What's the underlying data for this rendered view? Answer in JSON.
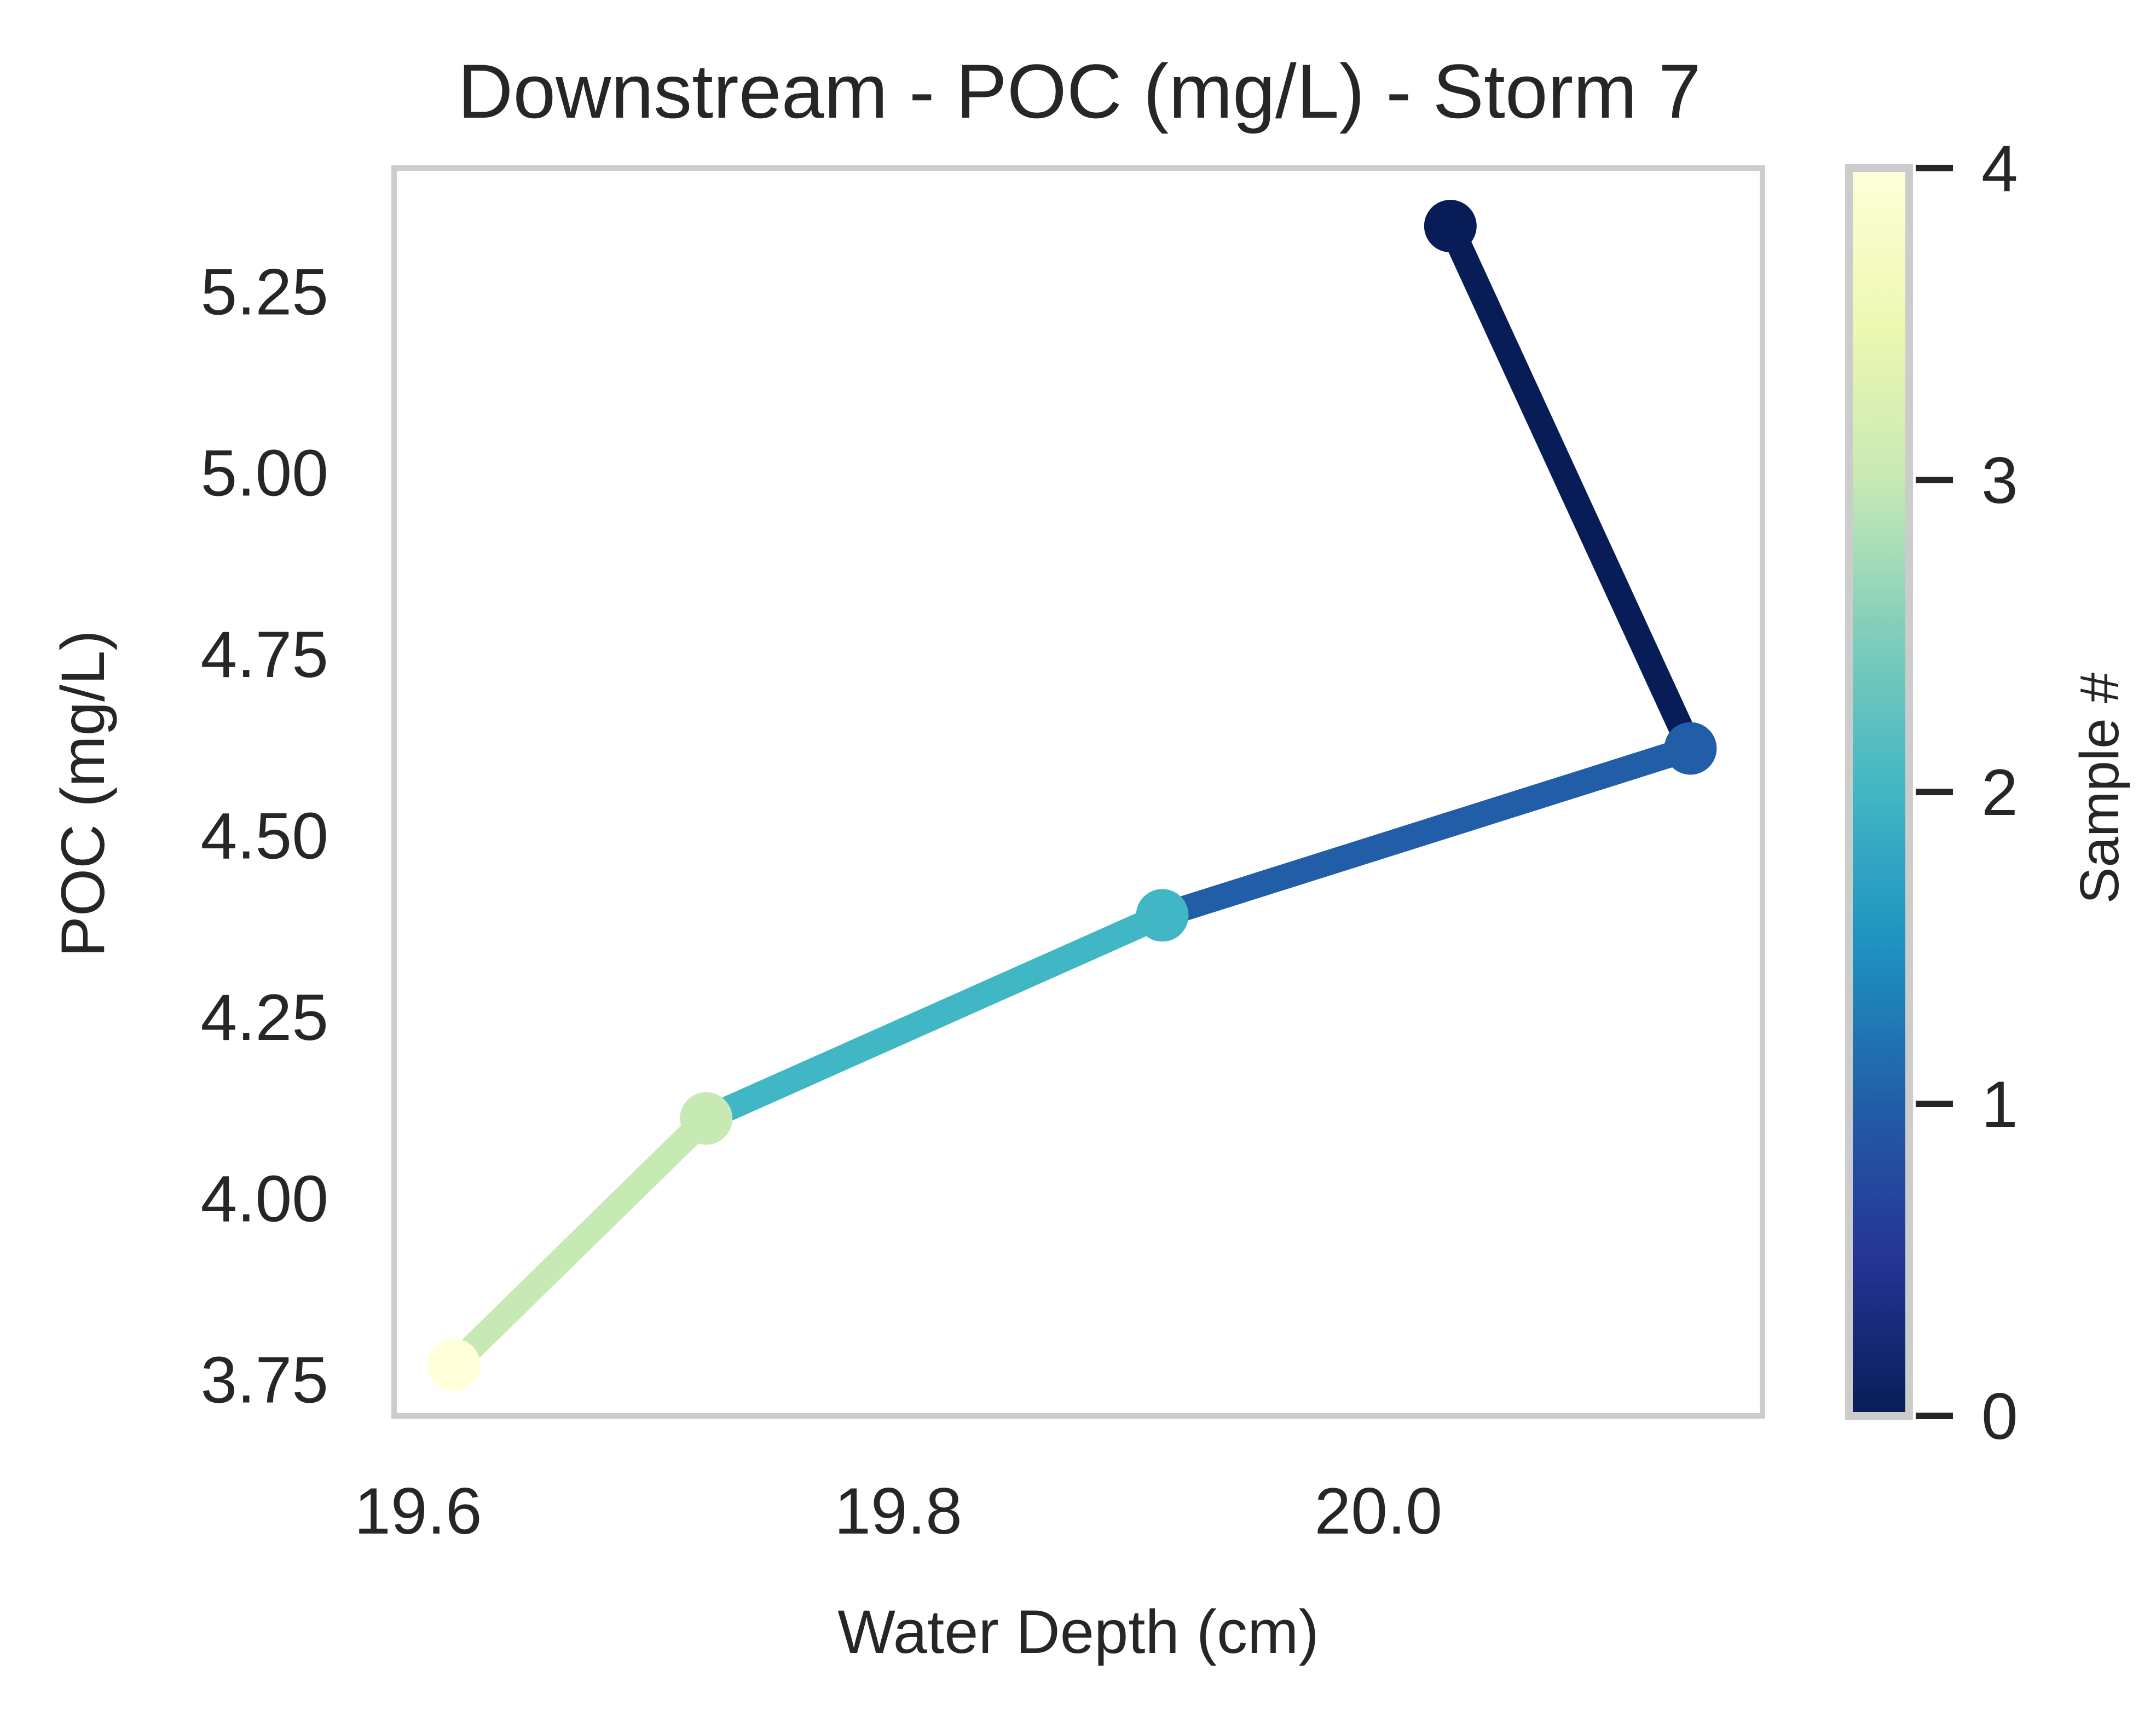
{
  "chart_data": {
    "type": "line",
    "title": "Downstream - POC (mg/L) - Storm 7",
    "xlabel": "Water Depth (cm)",
    "ylabel": "POC (mg/L)",
    "xlim": [
      19.59,
      20.16
    ],
    "ylim": [
      3.7,
      5.42
    ],
    "xticks": [
      "19.6",
      "19.8",
      "20.0"
    ],
    "yticks": [
      "3.75",
      "4.00",
      "4.25",
      "4.50",
      "4.75",
      "5.00",
      "5.25"
    ],
    "grid": false,
    "points": [
      {
        "sample": 0,
        "x": 20.03,
        "y": 5.34
      },
      {
        "sample": 1,
        "x": 20.13,
        "y": 4.62
      },
      {
        "sample": 2,
        "x": 19.91,
        "y": 4.39
      },
      {
        "sample": 3,
        "x": 19.72,
        "y": 4.11
      },
      {
        "sample": 4,
        "x": 19.615,
        "y": 3.77
      }
    ],
    "colorbar": {
      "label": "Sample #",
      "min": 0,
      "max": 4,
      "ticks": [
        "0",
        "1",
        "2",
        "3",
        "4"
      ],
      "colormap": "YlGnBu_r",
      "stops": [
        "#081d58",
        "#253494",
        "#225ea8",
        "#1d91c0",
        "#41b6c4",
        "#7fcdbb",
        "#c7e9b4",
        "#edf8b1",
        "#ffffd9"
      ]
    },
    "colors": {
      "sample_0": "#081d58",
      "sample_1": "#225ea8",
      "sample_2": "#41b6c4",
      "sample_3": "#c7e9b4",
      "sample_4": "#ffffd9",
      "frame": "#cccccc",
      "text": "#262626"
    }
  }
}
